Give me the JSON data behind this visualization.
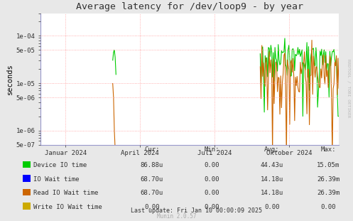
{
  "title": "Average latency for /dev/loop9 - by year",
  "ylabel": "seconds",
  "xlabel_ticks": [
    "Januar 2024",
    "April 2024",
    "Juli 2024",
    "Oktober 2024"
  ],
  "ytick_labels": [
    "5e-07",
    "1e-06",
    "5e-06",
    "1e-05",
    "5e-05",
    "1e-04"
  ],
  "ytick_values": [
    5e-07,
    1e-06,
    5e-06,
    1e-05,
    5e-05,
    0.0001
  ],
  "background_color": "#e8e8e8",
  "plot_bg_color": "#ffffff",
  "grid_color": "#ff9999",
  "title_color": "#333333",
  "rrdtool_label": "RRDTOOL / TOBI OETIKER",
  "legend_items": [
    {
      "label": "Device IO time",
      "color": "#00cc00",
      "cur": "86.88u",
      "min": "0.00",
      "avg": "44.43u",
      "max": "15.05m"
    },
    {
      "label": "IO Wait time",
      "color": "#0000ff",
      "cur": "68.70u",
      "min": "0.00",
      "avg": "14.18u",
      "max": "26.39m"
    },
    {
      "label": "Read IO Wait time",
      "color": "#cc6600",
      "cur": "68.70u",
      "min": "0.00",
      "avg": "14.18u",
      "max": "26.39m"
    },
    {
      "label": "Write IO Wait time",
      "color": "#ccaa00",
      "cur": "0.00",
      "min": "0.00",
      "avg": "0.00",
      "max": "0.00"
    }
  ],
  "last_update": "Last update: Fri Jan 10 00:00:09 2025",
  "munin_version": "Munin 2.0.57"
}
